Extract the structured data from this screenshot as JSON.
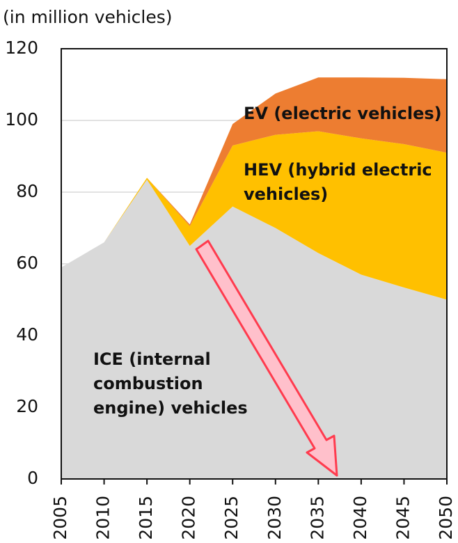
{
  "chart_data": {
    "type": "stacked_area",
    "title": "(in million vehicles)",
    "x": [
      2005,
      2010,
      2015,
      2020,
      2025,
      2030,
      2035,
      2040,
      2045,
      2050
    ],
    "xlim": [
      2005,
      2050
    ],
    "xticks": [
      2005,
      2010,
      2015,
      2020,
      2025,
      2030,
      2035,
      2040,
      2045,
      2050
    ],
    "ylim": [
      0,
      120
    ],
    "yticks": [
      0,
      20,
      40,
      60,
      80,
      100,
      120
    ],
    "grid": true,
    "series": [
      {
        "name": "ICE (internal combustion engine) vehicles",
        "color": "#d9d9d9",
        "values": [
          59,
          66,
          83.5,
          65,
          76,
          70,
          63,
          57,
          53.4,
          50
        ]
      },
      {
        "name": "HEV (hybrid electric vehicles)",
        "color": "#ffc000",
        "values": [
          0,
          0,
          0.5,
          5.5,
          17,
          26,
          34,
          38,
          40,
          41
        ]
      },
      {
        "name": "EV (electric vehicles)",
        "color": "#ed7d31",
        "values": [
          0,
          0,
          0,
          0.5,
          6,
          11.5,
          15,
          17,
          18.5,
          20.5
        ]
      }
    ],
    "annotations": [
      [
        "ICE (internal",
        "combustion",
        "engine) vehicles"
      ],
      [
        "HEV (hybrid electric",
        "vehicles)"
      ],
      [
        "EV (electric vehicles)"
      ]
    ]
  }
}
